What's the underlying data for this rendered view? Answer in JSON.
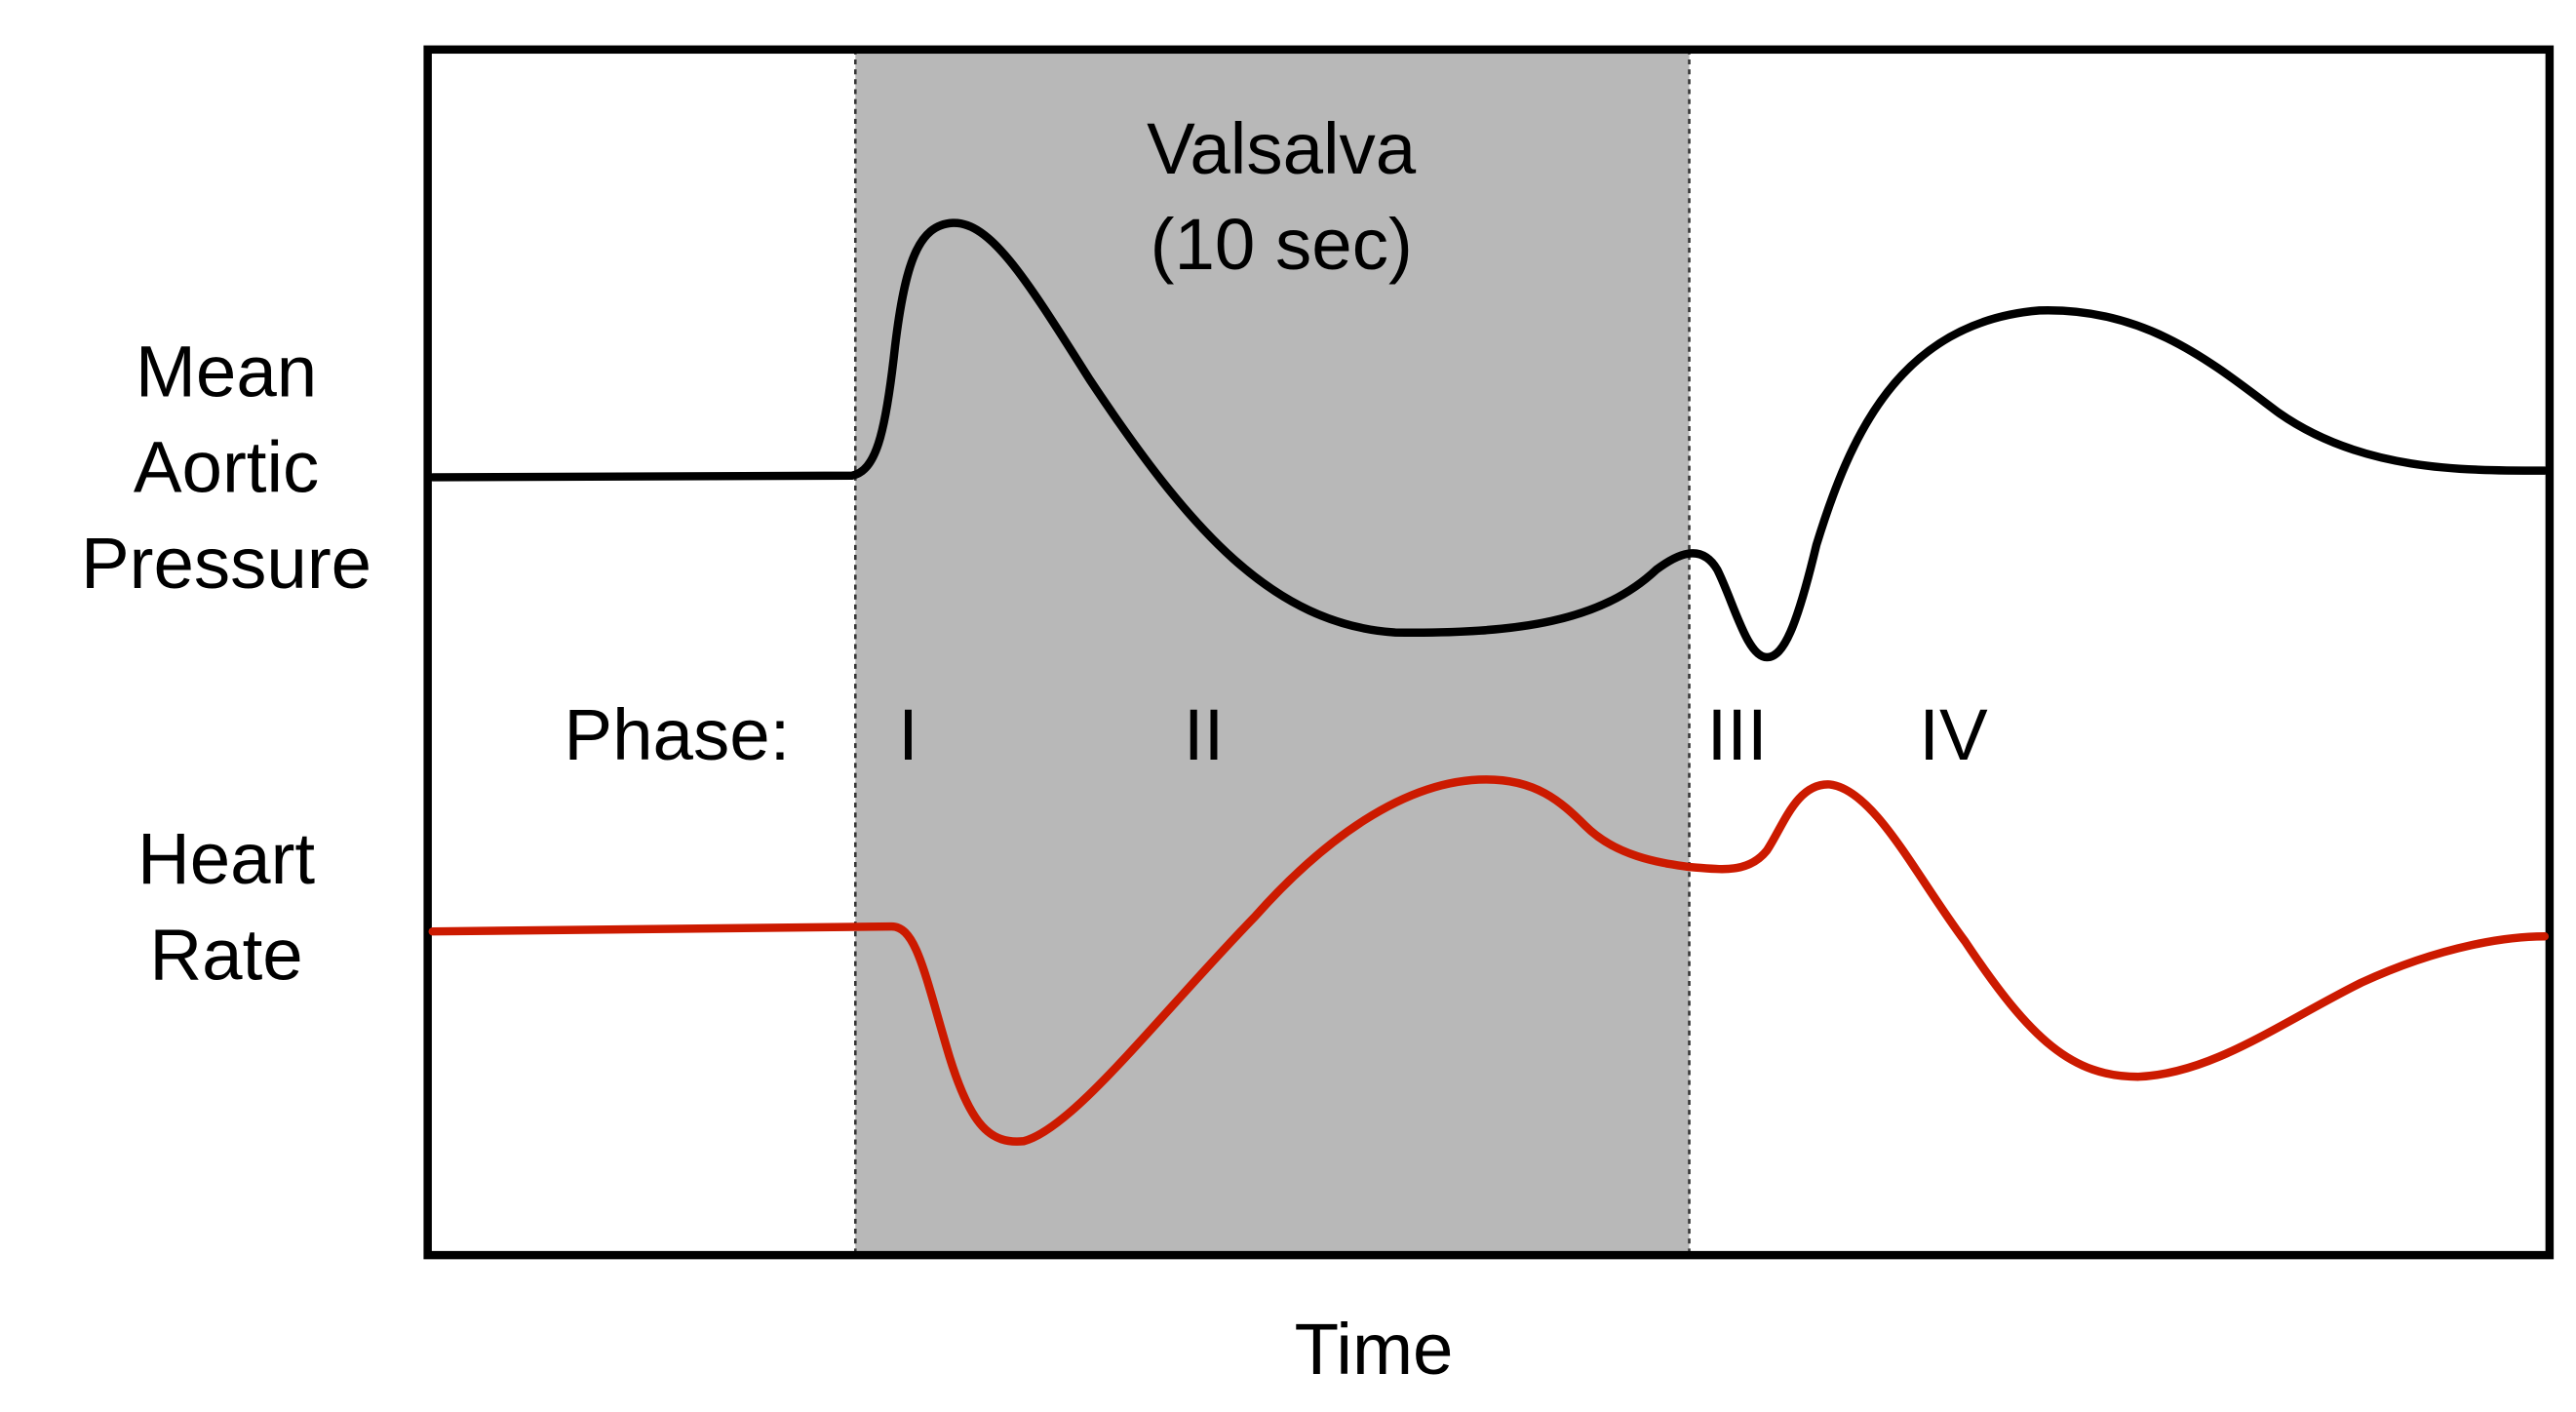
{
  "diagram": {
    "x_axis_label": "Time",
    "valsalva_label_line1": "Valsalva",
    "valsalva_label_line2": "(10 sec)",
    "pressure_label_lines": [
      "Mean",
      "Aortic",
      "Pressure"
    ],
    "heart_rate_label_lines": [
      "Heart",
      "Rate"
    ],
    "phase_label": "Phase:",
    "phases": [
      "I",
      "II",
      "III",
      "IV"
    ]
  },
  "colors": {
    "pressure_trace": "#000000",
    "heart_rate_trace": "#cc1a00",
    "valsalva_shading": "#b8b8b8",
    "frame": "#000000"
  }
}
